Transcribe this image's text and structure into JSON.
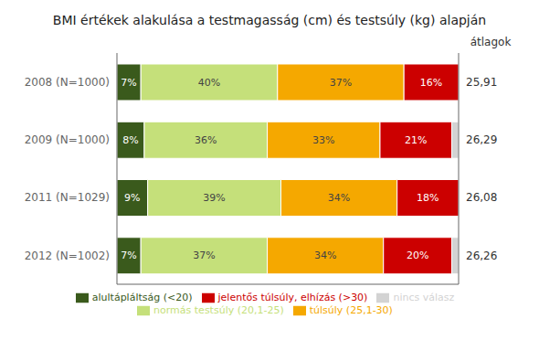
{
  "chart_data": {
    "type": "bar",
    "orientation": "horizontal",
    "stacked": true,
    "title": "BMI értékek alakulása a testmagasság (cm) és testsúly (kg) alapján",
    "categories": [
      "2008 (N=1000)",
      "2009 (N=1000)",
      "2011 (N=1029)",
      "2012 (N=1002)"
    ],
    "series": [
      {
        "name": "alultápláltság (<20)",
        "color": "#3a5a1c",
        "values": [
          7,
          8,
          9,
          7
        ],
        "value_labels": [
          "7%",
          "8%",
          "9%",
          "7%"
        ]
      },
      {
        "name": "normás testsúly (20,1-25)",
        "color": "#c5e07a",
        "values": [
          40,
          36,
          39,
          37
        ],
        "value_labels": [
          "40%",
          "36%",
          "39%",
          "37%"
        ]
      },
      {
        "name": "túlsúly (25,1-30)",
        "color": "#f5a800",
        "values": [
          37,
          33,
          34,
          34
        ],
        "value_labels": [
          "37%",
          "33%",
          "34%",
          "34%"
        ]
      },
      {
        "name": "jelentős túlsúly, elhízás (>30)",
        "color": "#cc0000",
        "values": [
          16,
          21,
          18,
          20
        ],
        "value_labels": [
          "16%",
          "21%",
          "18%",
          "20%"
        ]
      },
      {
        "name": "nincs válasz",
        "color": "#d3d3d3",
        "values": [
          0,
          2,
          0,
          2
        ],
        "value_labels": [
          null,
          null,
          null,
          null
        ]
      }
    ],
    "xlim": [
      0,
      100
    ],
    "tick_labels": "y",
    "data_labels": true,
    "grid": false,
    "legend": "bottom",
    "averages_label": "átlagok",
    "averages": [
      {
        "value": 25.91,
        "label": "25,91"
      },
      {
        "value": 26.29,
        "label": "26,29"
      },
      {
        "value": 26.08,
        "label": "26,08"
      },
      {
        "value": 26.26,
        "label": "26,26"
      }
    ]
  }
}
